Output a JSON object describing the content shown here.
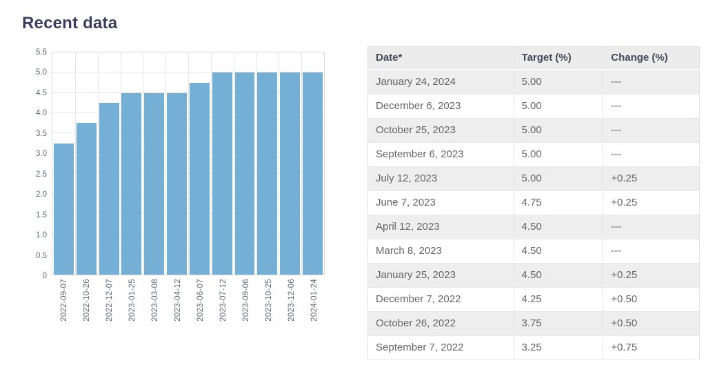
{
  "page": {
    "title": "Recent data"
  },
  "colors": {
    "title": "#3a3f5e",
    "bar": "#74b0d6",
    "grid": "#e6e6e6",
    "plot_border": "#d9d9d9",
    "axis_label": "#61677a",
    "table_header_bg": "#ececec",
    "table_stripe_bg": "#eeeeee",
    "table_border": "#e2e2e2",
    "cell_text": "#666666",
    "header_text": "#45485c"
  },
  "chart_data": {
    "type": "bar",
    "title": "",
    "xlabel": "",
    "ylabel": "",
    "categories": [
      "2022-09-07",
      "2022-10-26",
      "2022-12-07",
      "2023-01-25",
      "2023-03-08",
      "2023-04-12",
      "2023-06-07",
      "2023-07-12",
      "2023-09-06",
      "2023-10-25",
      "2023-12-06",
      "2024-01-24"
    ],
    "values": [
      3.25,
      3.75,
      4.25,
      4.5,
      4.5,
      4.5,
      4.75,
      5.0,
      5.0,
      5.0,
      5.0,
      5.0
    ],
    "ylim": [
      0,
      5.5
    ],
    "ytick_values": [
      0,
      0.5,
      1,
      1.5,
      2,
      2.5,
      3,
      3.5,
      4,
      4.5,
      5,
      5.5
    ],
    "ytick_labels": [
      "0",
      "0.5",
      "1.0",
      "1.5",
      "2.0",
      "2.5",
      "3.0",
      "3.5",
      "4.0",
      "4.5",
      "5.0",
      "5.5"
    ],
    "grid": true,
    "legend_position": "none",
    "bar_color": "#74b0d6"
  },
  "table": {
    "headers": [
      "Date*",
      "Target (%)",
      "Change (%)"
    ],
    "rows": [
      [
        "January 24, 2024",
        "5.00",
        "---"
      ],
      [
        "December 6, 2023",
        "5.00",
        "---"
      ],
      [
        "October 25, 2023",
        "5.00",
        "---"
      ],
      [
        "September 6, 2023",
        "5.00",
        "---"
      ],
      [
        "July 12, 2023",
        "5.00",
        "+0.25"
      ],
      [
        "June 7, 2023",
        "4.75",
        "+0.25"
      ],
      [
        "April 12, 2023",
        "4.50",
        "---"
      ],
      [
        "March 8, 2023",
        "4.50",
        "---"
      ],
      [
        "January 25, 2023",
        "4.50",
        "+0.25"
      ],
      [
        "December 7, 2022",
        "4.25",
        "+0.50"
      ],
      [
        "October 26, 2022",
        "3.75",
        "+0.50"
      ],
      [
        "September 7, 2022",
        "3.25",
        "+0.75"
      ]
    ]
  }
}
